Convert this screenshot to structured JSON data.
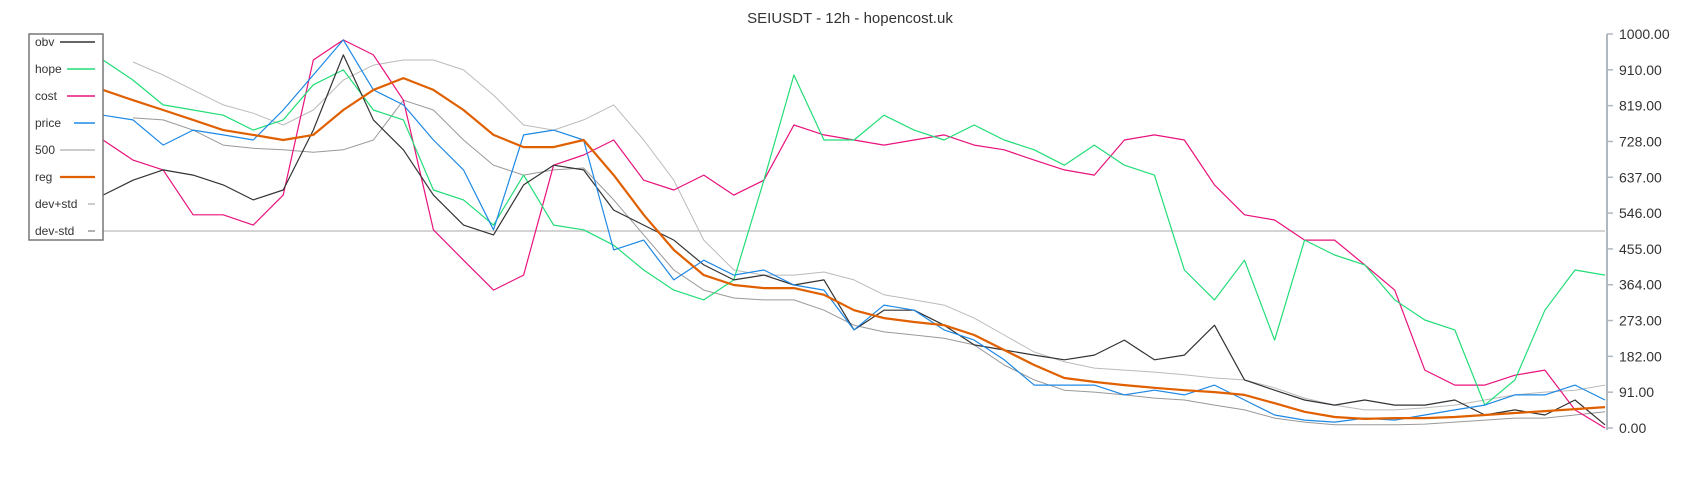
{
  "chart_data": {
    "type": "line",
    "title": "SEIUSDT - 12h - hopencost.uk",
    "xlabel": "",
    "ylabel": "",
    "ylim": [
      0,
      1000
    ],
    "y_ticks": [
      "1000.00",
      "910.00",
      "819.00",
      "728.00",
      "637.00",
      "546.00",
      "455.00",
      "364.00",
      "273.00",
      "182.00",
      "91.00",
      "0.00"
    ],
    "y_axis_position": "right",
    "legend_position": "top-left",
    "grid": false,
    "x": [
      0,
      1,
      2,
      3,
      4,
      5,
      6,
      7,
      8,
      9,
      10,
      11,
      12,
      13,
      14,
      15,
      16,
      17,
      18,
      19,
      20,
      21,
      22,
      23,
      24,
      25,
      26,
      27,
      28,
      29,
      30,
      31,
      32,
      33,
      34,
      35,
      36,
      37,
      38,
      39,
      40,
      41,
      42,
      43,
      44,
      45,
      46,
      47,
      48,
      49,
      50
    ],
    "series": [
      {
        "name": "obv",
        "color": "#333333",
        "width": 1.2,
        "values": [
          591,
          629,
          655,
          642,
          617,
          579,
          604,
          756,
          947,
          782,
          706,
          591,
          515,
          490,
          617,
          667,
          655,
          553,
          515,
          477,
          414,
          376,
          388,
          363,
          376,
          249,
          299,
          299,
          261,
          211,
          198,
          185,
          173,
          185,
          223,
          173,
          185,
          261,
          122,
          96,
          71,
          58,
          71,
          58,
          58,
          71,
          33,
          46,
          33,
          71,
          8
        ]
      },
      {
        "name": "hope",
        "color": "#22dd77",
        "width": 1.2,
        "values": [
          934,
          883,
          820,
          807,
          794,
          756,
          782,
          871,
          909,
          807,
          782,
          604,
          579,
          515,
          642,
          515,
          503,
          464,
          401,
          350,
          325,
          376,
          629,
          896,
          731,
          731,
          794,
          756,
          731,
          769,
          731,
          706,
          667,
          718,
          667,
          642,
          401,
          325,
          426,
          223,
          477,
          439,
          414,
          325,
          274,
          249,
          58,
          122,
          299,
          401,
          388
        ]
      },
      {
        "name": "cost",
        "color": "#e8127c",
        "width": 1.2,
        "values": [
          731,
          680,
          655,
          541,
          541,
          515,
          591,
          934,
          985,
          947,
          832,
          503,
          426,
          350,
          388,
          667,
          693,
          731,
          629,
          604,
          642,
          591,
          629,
          769,
          744,
          731,
          718,
          731,
          744,
          718,
          706,
          680,
          655,
          642,
          731,
          744,
          731,
          617,
          541,
          528,
          477,
          477,
          414,
          350,
          147,
          109,
          109,
          134,
          147,
          46,
          0
        ]
      },
      {
        "name": "price",
        "color": "#1e88e5",
        "width": 1.2,
        "values": [
          794,
          782,
          718,
          756,
          744,
          731,
          807,
          896,
          985,
          858,
          820,
          731,
          655,
          503,
          744,
          756,
          731,
          452,
          477,
          376,
          426,
          388,
          401,
          363,
          350,
          249,
          312,
          299,
          249,
          223,
          173,
          109,
          109,
          109,
          84,
          96,
          84,
          109,
          71,
          33,
          20,
          15,
          25,
          20,
          33,
          46,
          58,
          84,
          84,
          109,
          71
        ]
      },
      {
        "name": "500",
        "color": "#bbbbbb",
        "width": 1.2,
        "values": [
          500,
          500,
          500,
          500,
          500,
          500,
          500,
          500,
          500,
          500,
          500,
          500,
          500,
          500,
          500,
          500,
          500,
          500,
          500,
          500,
          500,
          500,
          500,
          500,
          500,
          500,
          500,
          500,
          500,
          500,
          500,
          500,
          500,
          500,
          500,
          500,
          500,
          500,
          500,
          500,
          500,
          500,
          500,
          500,
          500,
          500,
          500,
          500,
          500,
          500,
          500
        ]
      },
      {
        "name": "reg",
        "color": "#e06000",
        "width": 2.2,
        "values": [
          858,
          832,
          807,
          782,
          756,
          744,
          731,
          744,
          807,
          858,
          888,
          858,
          807,
          744,
          713,
          713,
          731,
          642,
          541,
          452,
          388,
          363,
          355,
          355,
          338,
          299,
          279,
          269,
          261,
          236,
          198,
          160,
          127,
          117,
          109,
          102,
          96,
          91,
          84,
          63,
          41,
          28,
          23,
          25,
          25,
          28,
          33,
          38,
          43,
          48,
          53
        ]
      },
      {
        "name": "dev+std",
        "color": "#bbbbbb",
        "width": 1,
        "values": [
          null,
          929,
          896,
          858,
          820,
          799,
          769,
          807,
          883,
          921,
          934,
          934,
          909,
          845,
          769,
          756,
          782,
          820,
          731,
          629,
          477,
          401,
          388,
          388,
          396,
          376,
          338,
          325,
          312,
          279,
          236,
          193,
          168,
          152,
          147,
          142,
          135,
          127,
          122,
          102,
          76,
          58,
          46,
          46,
          51,
          58,
          71,
          84,
          91,
          96,
          109
        ]
      },
      {
        "name": "dev-std",
        "color": "#999999",
        "width": 1,
        "values": [
          null,
          787,
          782,
          756,
          718,
          710,
          706,
          700,
          706,
          731,
          832,
          807,
          731,
          667,
          642,
          655,
          660,
          579,
          490,
          401,
          350,
          330,
          325,
          325,
          299,
          261,
          244,
          236,
          228,
          211,
          160,
          122,
          96,
          91,
          84,
          76,
          71,
          58,
          46,
          25,
          15,
          8,
          8,
          8,
          10,
          15,
          20,
          25,
          25,
          33,
          41
        ]
      }
    ]
  }
}
